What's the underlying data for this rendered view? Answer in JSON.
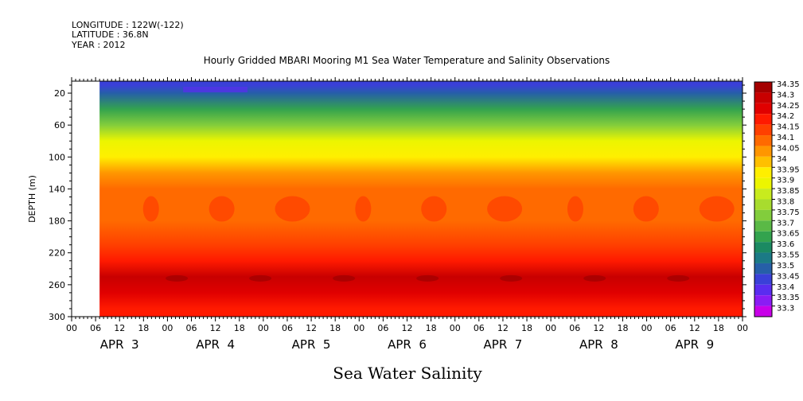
{
  "header": {
    "longitude": "LONGITUDE : 122W(-122)",
    "latitude": "LATITUDE : 36.8N",
    "year": "YEAR : 2012"
  },
  "chart_data": {
    "type": "heatmap",
    "title": "Hourly Gridded MBARI Mooring M1 Sea Water Temperature and Salinity Observations",
    "xlabel": "Sea Water Salinity",
    "ylabel": "DEPTH (m)",
    "y_range": [
      300,
      5
    ],
    "y_ticks": [
      20,
      60,
      100,
      140,
      180,
      220,
      260,
      300
    ],
    "x_hour_ticks": [
      "00",
      "06",
      "12",
      "18",
      "00",
      "06",
      "12",
      "18",
      "00",
      "06",
      "12",
      "18",
      "00",
      "06",
      "12",
      "18",
      "00",
      "06",
      "12",
      "18",
      "00",
      "06",
      "12",
      "18",
      "00",
      "06",
      "12",
      "18",
      "00"
    ],
    "x_day_labels": [
      "APR  3",
      "APR  4",
      "APR  5",
      "APR  6",
      "APR  7",
      "APR  8",
      "APR  9"
    ],
    "data_start_hour": 7,
    "colorbar": {
      "levels": [
        34.35,
        34.3,
        34.25,
        34.2,
        34.15,
        34.1,
        34.05,
        34,
        33.95,
        33.9,
        33.85,
        33.8,
        33.75,
        33.7,
        33.65,
        33.6,
        33.55,
        33.5,
        33.45,
        33.4,
        33.35,
        33.3
      ],
      "colors": [
        "#a40000",
        "#c80000",
        "#e00000",
        "#ff1a00",
        "#ff4000",
        "#ff6a00",
        "#ff9600",
        "#ffc000",
        "#ffef00",
        "#ecf500",
        "#c8eb1e",
        "#a8dc2e",
        "#82cd3c",
        "#5ab946",
        "#33a34e",
        "#1b8a62",
        "#1b7a86",
        "#265fa8",
        "#3a40d8",
        "#5a2cf0",
        "#8a1cf4",
        "#c800e8"
      ]
    },
    "depth_profile": [
      {
        "depth": 10,
        "salinity": 33.48
      },
      {
        "depth": 20,
        "salinity": 33.52
      },
      {
        "depth": 40,
        "salinity": 33.65
      },
      {
        "depth": 60,
        "salinity": 33.78
      },
      {
        "depth": 80,
        "salinity": 33.9
      },
      {
        "depth": 100,
        "salinity": 33.98
      },
      {
        "depth": 120,
        "salinity": 34.05
      },
      {
        "depth": 140,
        "salinity": 34.12
      },
      {
        "depth": 180,
        "salinity": 34.14
      },
      {
        "depth": 210,
        "salinity": 34.18
      },
      {
        "depth": 230,
        "salinity": 34.24
      },
      {
        "depth": 250,
        "salinity": 34.31
      },
      {
        "depth": 270,
        "salinity": 34.28
      },
      {
        "depth": 290,
        "salinity": 34.22
      },
      {
        "depth": 300,
        "salinity": 34.2
      }
    ]
  }
}
